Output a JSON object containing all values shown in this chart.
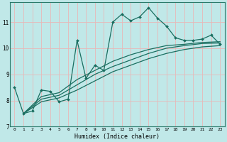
{
  "xlabel": "Humidex (Indice chaleur)",
  "bg_color": "#c0e8e8",
  "grid_color": "#e8b8b8",
  "line_color": "#1a6e60",
  "xlim": [
    -0.5,
    23.5
  ],
  "ylim": [
    7.0,
    11.75
  ],
  "xticks": [
    0,
    1,
    2,
    3,
    4,
    5,
    6,
    7,
    8,
    9,
    10,
    11,
    12,
    13,
    14,
    15,
    16,
    17,
    18,
    19,
    20,
    21,
    22,
    23
  ],
  "yticks": [
    7,
    8,
    9,
    10,
    11
  ],
  "line1_x": [
    0,
    1,
    2,
    3,
    4,
    5,
    6,
    7,
    8,
    9,
    10,
    11,
    12,
    13,
    14,
    15,
    16,
    17,
    18,
    19,
    20,
    21,
    22,
    23
  ],
  "line1_y": [
    8.5,
    7.5,
    7.6,
    8.4,
    8.35,
    7.95,
    8.05,
    10.3,
    8.85,
    9.35,
    9.15,
    11.0,
    11.3,
    11.05,
    11.2,
    11.55,
    11.15,
    10.85,
    10.4,
    10.3,
    10.3,
    10.35,
    10.5,
    10.15
  ],
  "line2_x": [
    1,
    3,
    5,
    7,
    9,
    11,
    13,
    15,
    17,
    19,
    21,
    23
  ],
  "line2_y": [
    7.5,
    7.95,
    8.1,
    8.4,
    8.75,
    9.1,
    9.35,
    9.6,
    9.8,
    9.95,
    10.05,
    10.1
  ],
  "line3_x": [
    1,
    3,
    5,
    7,
    9,
    11,
    13,
    15,
    17,
    19,
    21,
    23
  ],
  "line3_y": [
    7.5,
    8.05,
    8.2,
    8.6,
    9.0,
    9.3,
    9.55,
    9.8,
    10.0,
    10.1,
    10.18,
    10.2
  ],
  "line4_x": [
    1,
    3,
    5,
    7,
    9,
    11,
    13,
    15,
    17,
    19,
    21,
    23
  ],
  "line4_y": [
    7.5,
    8.15,
    8.3,
    8.8,
    9.15,
    9.5,
    9.75,
    9.95,
    10.1,
    10.15,
    10.22,
    10.25
  ]
}
